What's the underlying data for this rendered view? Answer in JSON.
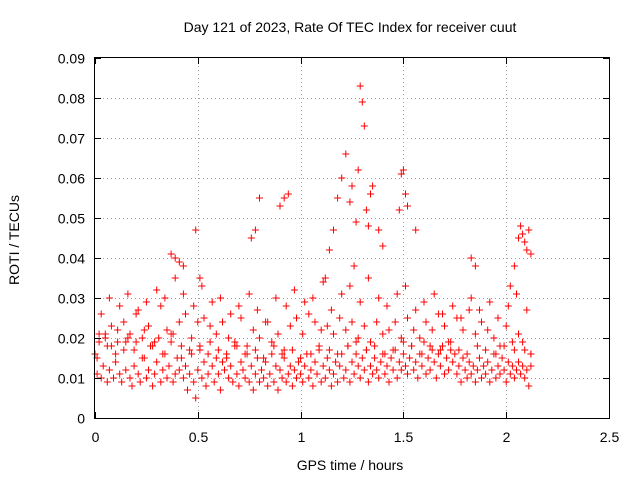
{
  "chart_data": {
    "type": "scatter",
    "title": "Day 121 of 2023, Rate Of TEC Index for receiver cuut",
    "xlabel": "GPS time / hours",
    "ylabel": "ROTI / TECUs",
    "xlim": [
      0,
      2.5
    ],
    "ylim": [
      0,
      0.09
    ],
    "xticks": [
      0,
      0.5,
      1,
      1.5,
      2,
      2.5
    ],
    "xtick_labels": [
      "0",
      "0.5",
      "1",
      "1.5",
      "2",
      "2.5"
    ],
    "yticks": [
      0,
      0.01,
      0.02,
      0.03,
      0.04,
      0.05,
      0.06,
      0.07,
      0.08,
      0.09
    ],
    "ytick_labels": [
      "0",
      "0.01",
      "0.02",
      "0.03",
      "0.04",
      "0.05",
      "0.06",
      "0.07",
      "0.08",
      "0.09"
    ],
    "grid": true,
    "marker": "plus",
    "color": "#ff0000",
    "series": [
      {
        "x": [
          0.0,
          0.01,
          0.02,
          0.03,
          0.04,
          0.05,
          0.06,
          0.07,
          0.08,
          0.09,
          0.1,
          0.11,
          0.12,
          0.13,
          0.14,
          0.15,
          0.16,
          0.17,
          0.18,
          0.19,
          0.2,
          0.21,
          0.22,
          0.23,
          0.24,
          0.25,
          0.26,
          0.27,
          0.28,
          0.29,
          0.3,
          0.31,
          0.32,
          0.33,
          0.34,
          0.35,
          0.36,
          0.37,
          0.38,
          0.39,
          0.4,
          0.41,
          0.42,
          0.43,
          0.44,
          0.45,
          0.46,
          0.47,
          0.48,
          0.49,
          0.5,
          0.51,
          0.52,
          0.53,
          0.54,
          0.55,
          0.56,
          0.57,
          0.58,
          0.59,
          0.6,
          0.61,
          0.62,
          0.63,
          0.64,
          0.65,
          0.66,
          0.67,
          0.68,
          0.69,
          0.7,
          0.71,
          0.72,
          0.73,
          0.74,
          0.75,
          0.76,
          0.77,
          0.78,
          0.79,
          0.8,
          0.81,
          0.82,
          0.83,
          0.84,
          0.85,
          0.86,
          0.87,
          0.88,
          0.89,
          0.9,
          0.91,
          0.92,
          0.93,
          0.94,
          0.95,
          0.96,
          0.97,
          0.98,
          0.99,
          1.0,
          1.01,
          1.02,
          1.03,
          1.04,
          1.05,
          1.06,
          1.07,
          1.08,
          1.09,
          1.1,
          1.11,
          1.12,
          1.13,
          1.14,
          1.15,
          1.16,
          1.17,
          1.18,
          1.19,
          1.2,
          1.21,
          1.22,
          1.23,
          1.24,
          1.25,
          1.26,
          1.27,
          1.28,
          1.29,
          1.3,
          1.31,
          1.32,
          1.33,
          1.34,
          1.35,
          1.36,
          1.37,
          1.38,
          1.39,
          1.4,
          1.41,
          1.42,
          1.43,
          1.44,
          1.45,
          1.46,
          1.47,
          1.48,
          1.49,
          1.5,
          1.51,
          1.52,
          1.53,
          1.54,
          1.55,
          1.56,
          1.57,
          1.58,
          1.59,
          1.6,
          1.61,
          1.62,
          1.63,
          1.64,
          1.65,
          1.66,
          1.67,
          1.68,
          1.69,
          1.7,
          1.71,
          1.72,
          1.73,
          1.74,
          1.75,
          1.76,
          1.77,
          1.78,
          1.79,
          1.8,
          1.81,
          1.82,
          1.83,
          1.84,
          1.85,
          1.86,
          1.87,
          1.88,
          1.89,
          1.9,
          1.91,
          1.92,
          1.93,
          1.94,
          1.95,
          1.96,
          1.97,
          1.98,
          1.99,
          2.0,
          2.01,
          2.02,
          2.03,
          2.04,
          2.05,
          2.06,
          2.07,
          2.08,
          2.09,
          2.1,
          2.11,
          2.12,
          0.02,
          0.05,
          0.08,
          0.11,
          0.14,
          0.17,
          0.2,
          0.23,
          0.26,
          0.29,
          0.32,
          0.35,
          0.38,
          0.41,
          0.44,
          0.47,
          0.5,
          0.53,
          0.56,
          0.59,
          0.62,
          0.65,
          0.68,
          0.71,
          0.74,
          0.77,
          0.8,
          0.83,
          0.86,
          0.89,
          0.92,
          0.95,
          0.98,
          1.01,
          1.04,
          1.07,
          1.1,
          1.13,
          1.16,
          1.19,
          1.22,
          1.25,
          1.28,
          1.31,
          1.34,
          1.37,
          1.4,
          1.43,
          1.46,
          1.49,
          1.52,
          1.55,
          1.58,
          1.61,
          1.64,
          1.67,
          1.7,
          1.73,
          1.76,
          1.79,
          1.82,
          1.85,
          1.88,
          1.91,
          1.94,
          1.97,
          2.0,
          2.03,
          2.06,
          2.09,
          2.12,
          0.03,
          0.07,
          0.12,
          0.16,
          0.21,
          0.25,
          0.3,
          0.34,
          0.39,
          0.43,
          0.48,
          0.52,
          0.57,
          0.61,
          0.66,
          0.7,
          0.75,
          0.79,
          0.84,
          0.88,
          0.93,
          0.97,
          1.02,
          1.06,
          1.11,
          1.15,
          1.2,
          1.24,
          1.29,
          1.33,
          1.38,
          1.42,
          1.47,
          1.51,
          1.56,
          1.6,
          1.65,
          1.69,
          1.74,
          1.78,
          1.83,
          1.87,
          1.92,
          1.96,
          2.01,
          2.05,
          2.1,
          0.01,
          0.06,
          0.1,
          0.15,
          0.19,
          0.24,
          0.28,
          0.33,
          0.37,
          0.42,
          0.46,
          0.51,
          0.55,
          0.6,
          0.64,
          0.69,
          0.73,
          0.78,
          0.82,
          0.87,
          0.91,
          0.96,
          1.0,
          1.05,
          1.09,
          1.14,
          1.18,
          1.23,
          1.27,
          1.32,
          1.36,
          1.41,
          1.45,
          1.5,
          1.54,
          1.59,
          1.63,
          1.68,
          1.72,
          1.77,
          1.81,
          1.86,
          1.9,
          1.95,
          1.99,
          2.04,
          2.08,
          2.12,
          0.37,
          0.39,
          0.41,
          0.43,
          0.49,
          0.51,
          0.76,
          0.78,
          0.8,
          0.9,
          0.92,
          0.94,
          1.12,
          1.14,
          1.16,
          1.18,
          1.2,
          1.22,
          1.24,
          1.25,
          1.26,
          1.27,
          1.28,
          1.29,
          1.3,
          1.31,
          1.32,
          1.33,
          1.34,
          1.35,
          1.38,
          1.4,
          1.48,
          1.49,
          1.5,
          1.51,
          1.52,
          1.56,
          1.83,
          1.85,
          2.02,
          2.04,
          2.06,
          2.07,
          2.08,
          2.09,
          2.1,
          2.11,
          2.12
        ],
        "y": [
          0.016,
          0.011,
          0.019,
          0.01,
          0.013,
          0.021,
          0.009,
          0.012,
          0.018,
          0.01,
          0.014,
          0.022,
          0.011,
          0.009,
          0.017,
          0.012,
          0.02,
          0.01,
          0.008,
          0.013,
          0.019,
          0.011,
          0.009,
          0.015,
          0.022,
          0.01,
          0.012,
          0.018,
          0.008,
          0.011,
          0.014,
          0.02,
          0.009,
          0.012,
          0.016,
          0.01,
          0.013,
          0.021,
          0.009,
          0.011,
          0.015,
          0.012,
          0.018,
          0.01,
          0.013,
          0.007,
          0.011,
          0.016,
          0.009,
          0.005,
          0.012,
          0.017,
          0.01,
          0.014,
          0.008,
          0.011,
          0.019,
          0.013,
          0.009,
          0.015,
          0.011,
          0.007,
          0.014,
          0.012,
          0.016,
          0.01,
          0.013,
          0.009,
          0.018,
          0.011,
          0.008,
          0.014,
          0.012,
          0.01,
          0.016,
          0.009,
          0.013,
          0.007,
          0.011,
          0.015,
          0.009,
          0.012,
          0.01,
          0.014,
          0.008,
          0.011,
          0.016,
          0.009,
          0.013,
          0.007,
          0.012,
          0.01,
          0.015,
          0.009,
          0.011,
          0.013,
          0.008,
          0.012,
          0.01,
          0.014,
          0.011,
          0.009,
          0.013,
          0.016,
          0.01,
          0.012,
          0.008,
          0.014,
          0.011,
          0.017,
          0.009,
          0.013,
          0.01,
          0.015,
          0.012,
          0.008,
          0.011,
          0.014,
          0.009,
          0.013,
          0.016,
          0.01,
          0.012,
          0.018,
          0.009,
          0.014,
          0.011,
          0.016,
          0.013,
          0.01,
          0.015,
          0.012,
          0.017,
          0.009,
          0.013,
          0.011,
          0.015,
          0.012,
          0.01,
          0.014,
          0.016,
          0.011,
          0.013,
          0.009,
          0.015,
          0.012,
          0.017,
          0.01,
          0.014,
          0.012,
          0.016,
          0.013,
          0.011,
          0.015,
          0.018,
          0.012,
          0.014,
          0.01,
          0.016,
          0.013,
          0.019,
          0.011,
          0.015,
          0.012,
          0.017,
          0.014,
          0.01,
          0.016,
          0.013,
          0.018,
          0.011,
          0.015,
          0.012,
          0.017,
          0.014,
          0.016,
          0.011,
          0.013,
          0.009,
          0.015,
          0.012,
          0.01,
          0.014,
          0.011,
          0.013,
          0.009,
          0.012,
          0.015,
          0.01,
          0.013,
          0.011,
          0.014,
          0.009,
          0.012,
          0.016,
          0.01,
          0.013,
          0.011,
          0.015,
          0.012,
          0.009,
          0.014,
          0.011,
          0.013,
          0.01,
          0.012,
          0.014,
          0.011,
          0.013,
          0.01,
          0.012,
          0.008,
          0.013,
          0.021,
          0.02,
          0.023,
          0.019,
          0.024,
          0.021,
          0.026,
          0.02,
          0.023,
          0.019,
          0.028,
          0.022,
          0.021,
          0.024,
          0.026,
          0.02,
          0.024,
          0.025,
          0.023,
          0.021,
          0.024,
          0.02,
          0.019,
          0.025,
          0.018,
          0.022,
          0.02,
          0.024,
          0.019,
          0.021,
          0.017,
          0.023,
          0.025,
          0.021,
          0.026,
          0.024,
          0.022,
          0.023,
          0.021,
          0.025,
          0.022,
          0.024,
          0.02,
          0.023,
          0.019,
          0.024,
          0.021,
          0.022,
          0.024,
          0.02,
          0.025,
          0.022,
          0.02,
          0.024,
          0.022,
          0.026,
          0.023,
          0.019,
          0.025,
          0.022,
          0.027,
          0.021,
          0.024,
          0.022,
          0.02,
          0.018,
          0.023,
          0.019,
          0.021,
          0.017,
          0.016,
          0.026,
          0.03,
          0.028,
          0.031,
          0.027,
          0.029,
          0.032,
          0.03,
          0.035,
          0.031,
          0.028,
          0.033,
          0.029,
          0.03,
          0.026,
          0.028,
          0.031,
          0.027,
          0.024,
          0.03,
          0.028,
          0.032,
          0.029,
          0.03,
          0.034,
          0.027,
          0.031,
          0.033,
          0.029,
          0.035,
          0.03,
          0.028,
          0.031,
          0.033,
          0.027,
          0.029,
          0.031,
          0.026,
          0.028,
          0.025,
          0.03,
          0.027,
          0.029,
          0.025,
          0.028,
          0.031,
          0.027,
          0.015,
          0.018,
          0.016,
          0.019,
          0.017,
          0.015,
          0.018,
          0.016,
          0.019,
          0.015,
          0.017,
          0.018,
          0.016,
          0.017,
          0.015,
          0.018,
          0.016,
          0.017,
          0.015,
          0.018,
          0.016,
          0.017,
          0.015,
          0.016,
          0.018,
          0.017,
          0.016,
          0.018,
          0.019,
          0.017,
          0.018,
          0.016,
          0.017,
          0.019,
          0.018,
          0.016,
          0.018,
          0.017,
          0.019,
          0.017,
          0.016,
          0.018,
          0.017,
          0.016,
          0.018,
          0.017,
          0.019,
          0.016,
          0.041,
          0.04,
          0.039,
          0.038,
          0.047,
          0.035,
          0.045,
          0.047,
          0.055,
          0.053,
          0.055,
          0.056,
          0.035,
          0.042,
          0.047,
          0.055,
          0.06,
          0.066,
          0.054,
          0.058,
          0.038,
          0.049,
          0.062,
          0.083,
          0.079,
          0.073,
          0.052,
          0.048,
          0.056,
          0.058,
          0.047,
          0.043,
          0.052,
          0.061,
          0.062,
          0.056,
          0.053,
          0.047,
          0.04,
          0.038,
          0.033,
          0.038,
          0.045,
          0.048,
          0.046,
          0.044,
          0.042,
          0.047,
          0.041
        ]
      }
    ]
  }
}
